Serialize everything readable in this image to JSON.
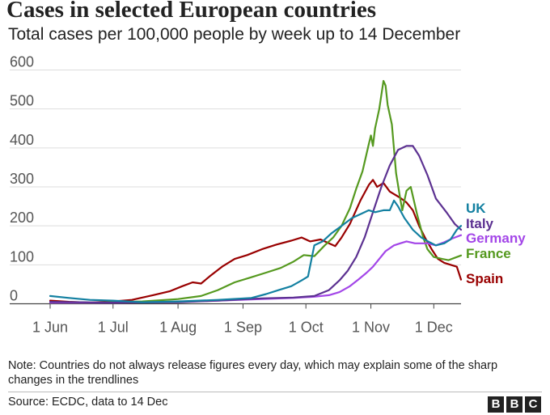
{
  "header": {
    "title": "Cases in selected European countries",
    "subtitle": "Total cases per 100,000 people by week up to 14 December"
  },
  "footer": {
    "note": "Note: Countries do not always release figures every day, which may explain some of the sharp changes in the trendlines",
    "source": "Source: ECDC, data to 14 Dec",
    "logo_letters": [
      "B",
      "B",
      "C"
    ]
  },
  "chart_data": {
    "type": "line",
    "title": "Cases in selected European countries",
    "subtitle": "Total cases per 100,000 people by week up to 14 December",
    "xlabel": "",
    "ylabel": "",
    "x_range": [
      "2020-06-01",
      "2020-12-14"
    ],
    "ylim": [
      0,
      600
    ],
    "y_ticks": [
      0,
      100,
      200,
      300,
      400,
      500,
      600
    ],
    "x_ticks": [
      {
        "date": "2020-06-01",
        "label": "1 Jun"
      },
      {
        "date": "2020-07-01",
        "label": "1 Jul"
      },
      {
        "date": "2020-08-01",
        "label": "1 Aug"
      },
      {
        "date": "2020-09-01",
        "label": "1 Sep"
      },
      {
        "date": "2020-10-01",
        "label": "1 Oct"
      },
      {
        "date": "2020-11-01",
        "label": "1 Nov"
      },
      {
        "date": "2020-12-01",
        "label": "1 Dec"
      }
    ],
    "grid": "horizontal",
    "legend": "direct labels at line ends",
    "series": [
      {
        "name": "Spain",
        "color": "#990000",
        "label_y": 58,
        "points": [
          [
            "2020-06-01",
            8
          ],
          [
            "2020-06-10",
            5
          ],
          [
            "2020-06-20",
            3
          ],
          [
            "2020-07-01",
            6
          ],
          [
            "2020-07-10",
            10
          ],
          [
            "2020-07-20",
            22
          ],
          [
            "2020-07-28",
            32
          ],
          [
            "2020-08-03",
            45
          ],
          [
            "2020-08-08",
            55
          ],
          [
            "2020-08-12",
            52
          ],
          [
            "2020-08-16",
            70
          ],
          [
            "2020-08-22",
            95
          ],
          [
            "2020-08-28",
            115
          ],
          [
            "2020-09-03",
            125
          ],
          [
            "2020-09-10",
            140
          ],
          [
            "2020-09-17",
            152
          ],
          [
            "2020-09-24",
            162
          ],
          [
            "2020-09-29",
            170
          ],
          [
            "2020-10-03",
            160
          ],
          [
            "2020-10-08",
            165
          ],
          [
            "2020-10-12",
            155
          ],
          [
            "2020-10-15",
            148
          ],
          [
            "2020-10-18",
            170
          ],
          [
            "2020-10-22",
            205
          ],
          [
            "2020-10-27",
            265
          ],
          [
            "2020-10-31",
            305
          ],
          [
            "2020-11-02",
            318
          ],
          [
            "2020-11-04",
            300
          ],
          [
            "2020-11-07",
            310
          ],
          [
            "2020-11-10",
            288
          ],
          [
            "2020-11-15",
            272
          ],
          [
            "2020-11-18",
            260
          ],
          [
            "2020-11-21",
            240
          ],
          [
            "2020-11-24",
            200
          ],
          [
            "2020-11-27",
            168
          ],
          [
            "2020-11-30",
            140
          ],
          [
            "2020-12-03",
            115
          ],
          [
            "2020-12-06",
            105
          ],
          [
            "2020-12-09",
            100
          ],
          [
            "2020-12-12",
            95
          ],
          [
            "2020-12-14",
            62
          ]
        ]
      },
      {
        "name": "France",
        "color": "#55991f",
        "label_y": 124,
        "points": [
          [
            "2020-06-01",
            3
          ],
          [
            "2020-06-20",
            3
          ],
          [
            "2020-07-01",
            4
          ],
          [
            "2020-07-15",
            6
          ],
          [
            "2020-08-01",
            12
          ],
          [
            "2020-08-12",
            20
          ],
          [
            "2020-08-20",
            35
          ],
          [
            "2020-08-28",
            55
          ],
          [
            "2020-09-05",
            68
          ],
          [
            "2020-09-12",
            80
          ],
          [
            "2020-09-19",
            92
          ],
          [
            "2020-09-25",
            108
          ],
          [
            "2020-09-30",
            125
          ],
          [
            "2020-10-05",
            122
          ],
          [
            "2020-10-10",
            150
          ],
          [
            "2020-10-14",
            170
          ],
          [
            "2020-10-18",
            200
          ],
          [
            "2020-10-22",
            245
          ],
          [
            "2020-10-25",
            295
          ],
          [
            "2020-10-28",
            340
          ],
          [
            "2020-10-31",
            410
          ],
          [
            "2020-11-01",
            432
          ],
          [
            "2020-11-02",
            405
          ],
          [
            "2020-11-03",
            450
          ],
          [
            "2020-11-05",
            500
          ],
          [
            "2020-11-07",
            572
          ],
          [
            "2020-11-08",
            560
          ],
          [
            "2020-11-09",
            510
          ],
          [
            "2020-11-11",
            460
          ],
          [
            "2020-11-13",
            335
          ],
          [
            "2020-11-15",
            270
          ],
          [
            "2020-11-16",
            240
          ],
          [
            "2020-11-18",
            290
          ],
          [
            "2020-11-20",
            300
          ],
          [
            "2020-11-23",
            230
          ],
          [
            "2020-11-26",
            170
          ],
          [
            "2020-11-28",
            140
          ],
          [
            "2020-12-01",
            120
          ],
          [
            "2020-12-05",
            115
          ],
          [
            "2020-12-08",
            112
          ],
          [
            "2020-12-11",
            118
          ],
          [
            "2020-12-14",
            124
          ]
        ]
      },
      {
        "name": "Germany",
        "color": "#a346e8",
        "label_y": 176,
        "points": [
          [
            "2020-06-01",
            3
          ],
          [
            "2020-07-01",
            3
          ],
          [
            "2020-08-01",
            5
          ],
          [
            "2020-08-20",
            8
          ],
          [
            "2020-09-10",
            12
          ],
          [
            "2020-09-25",
            15
          ],
          [
            "2020-10-05",
            18
          ],
          [
            "2020-10-12",
            22
          ],
          [
            "2020-10-17",
            30
          ],
          [
            "2020-10-22",
            45
          ],
          [
            "2020-10-26",
            62
          ],
          [
            "2020-10-30",
            80
          ],
          [
            "2020-11-02",
            95
          ],
          [
            "2020-11-05",
            115
          ],
          [
            "2020-11-08",
            135
          ],
          [
            "2020-11-12",
            150
          ],
          [
            "2020-11-15",
            155
          ],
          [
            "2020-11-18",
            160
          ],
          [
            "2020-11-22",
            155
          ],
          [
            "2020-11-28",
            155
          ],
          [
            "2020-12-02",
            150
          ],
          [
            "2020-12-06",
            158
          ],
          [
            "2020-12-10",
            168
          ],
          [
            "2020-12-14",
            176
          ]
        ]
      },
      {
        "name": "Italy",
        "color": "#5c3191",
        "label_y": 191,
        "points": [
          [
            "2020-06-01",
            5
          ],
          [
            "2020-07-01",
            3
          ],
          [
            "2020-08-01",
            4
          ],
          [
            "2020-08-20",
            8
          ],
          [
            "2020-09-10",
            14
          ],
          [
            "2020-09-25",
            16
          ],
          [
            "2020-10-05",
            20
          ],
          [
            "2020-10-12",
            35
          ],
          [
            "2020-10-17",
            60
          ],
          [
            "2020-10-21",
            85
          ],
          [
            "2020-10-25",
            120
          ],
          [
            "2020-10-29",
            170
          ],
          [
            "2020-11-02",
            235
          ],
          [
            "2020-11-06",
            300
          ],
          [
            "2020-11-10",
            355
          ],
          [
            "2020-11-14",
            395
          ],
          [
            "2020-11-18",
            405
          ],
          [
            "2020-11-21",
            405
          ],
          [
            "2020-11-24",
            380
          ],
          [
            "2020-11-28",
            330
          ],
          [
            "2020-12-02",
            270
          ],
          [
            "2020-12-07",
            235
          ],
          [
            "2020-12-11",
            205
          ],
          [
            "2020-12-14",
            190
          ]
        ]
      },
      {
        "name": "UK",
        "color": "#1380a1",
        "label_y": 200,
        "points": [
          [
            "2020-06-01",
            20
          ],
          [
            "2020-06-10",
            15
          ],
          [
            "2020-06-20",
            10
          ],
          [
            "2020-07-01",
            8
          ],
          [
            "2020-07-15",
            4
          ],
          [
            "2020-08-01",
            6
          ],
          [
            "2020-08-20",
            10
          ],
          [
            "2020-09-05",
            15
          ],
          [
            "2020-09-12",
            25
          ],
          [
            "2020-09-18",
            35
          ],
          [
            "2020-09-24",
            45
          ],
          [
            "2020-09-29",
            60
          ],
          [
            "2020-10-02",
            70
          ],
          [
            "2020-10-05",
            150
          ],
          [
            "2020-10-09",
            160
          ],
          [
            "2020-10-13",
            180
          ],
          [
            "2020-10-18",
            200
          ],
          [
            "2020-10-23",
            220
          ],
          [
            "2020-10-27",
            230
          ],
          [
            "2020-10-31",
            240
          ],
          [
            "2020-11-03",
            235
          ],
          [
            "2020-11-07",
            240
          ],
          [
            "2020-11-10",
            240
          ],
          [
            "2020-11-12",
            265
          ],
          [
            "2020-11-14",
            250
          ],
          [
            "2020-11-17",
            220
          ],
          [
            "2020-11-21",
            190
          ],
          [
            "2020-11-25",
            170
          ],
          [
            "2020-11-29",
            158
          ],
          [
            "2020-12-02",
            150
          ],
          [
            "2020-12-06",
            155
          ],
          [
            "2020-12-09",
            165
          ],
          [
            "2020-12-12",
            190
          ],
          [
            "2020-12-14",
            200
          ]
        ]
      }
    ]
  }
}
